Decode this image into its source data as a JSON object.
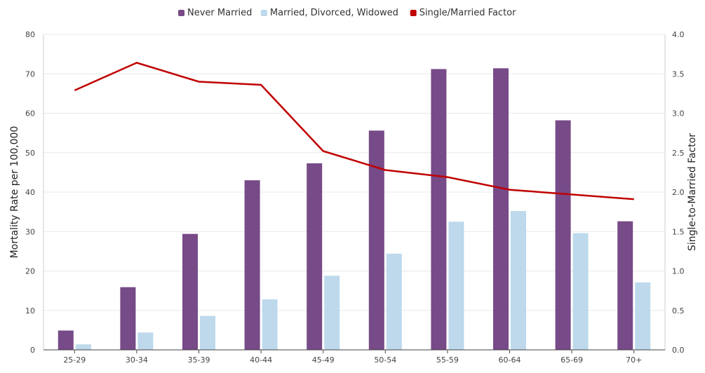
{
  "chart_data": {
    "type": "bar",
    "categories": [
      "25-29",
      "30-34",
      "35-39",
      "40-44",
      "45-49",
      "50-54",
      "55-59",
      "60-64",
      "65-69",
      "70+"
    ],
    "series": [
      {
        "name": "Never Married",
        "kind": "bar",
        "axis": "left",
        "color": "#774a88",
        "values": [
          4.9,
          15.9,
          29.4,
          43.0,
          47.3,
          55.6,
          71.2,
          71.4,
          58.2,
          32.6
        ]
      },
      {
        "name": "Married, Divorced, Widowed",
        "kind": "bar",
        "axis": "left",
        "color": "#bed9ec",
        "values": [
          1.4,
          4.4,
          8.6,
          12.8,
          18.8,
          24.4,
          32.5,
          35.2,
          29.6,
          17.1
        ]
      },
      {
        "name": "Single/Married Factor",
        "kind": "line",
        "axis": "right",
        "color": "#c00000",
        "values": [
          3.29,
          3.64,
          3.4,
          3.36,
          2.52,
          2.28,
          2.19,
          2.03,
          1.97,
          1.91
        ]
      }
    ],
    "ylabel": "Mortality Rate per 100,000",
    "y2label": "Single-to-Married Factor",
    "ylim": [
      0,
      80
    ],
    "y2lim": [
      0,
      4
    ],
    "yticks": [
      "0",
      "10",
      "20",
      "30",
      "40",
      "50",
      "60",
      "70",
      "80"
    ],
    "y2ticks": [
      "0.0",
      "0.5",
      "1.0",
      "1.5",
      "2.0",
      "2.5",
      "3.0",
      "3.5",
      "4.0"
    ],
    "grid": true,
    "legend": "top-center"
  }
}
